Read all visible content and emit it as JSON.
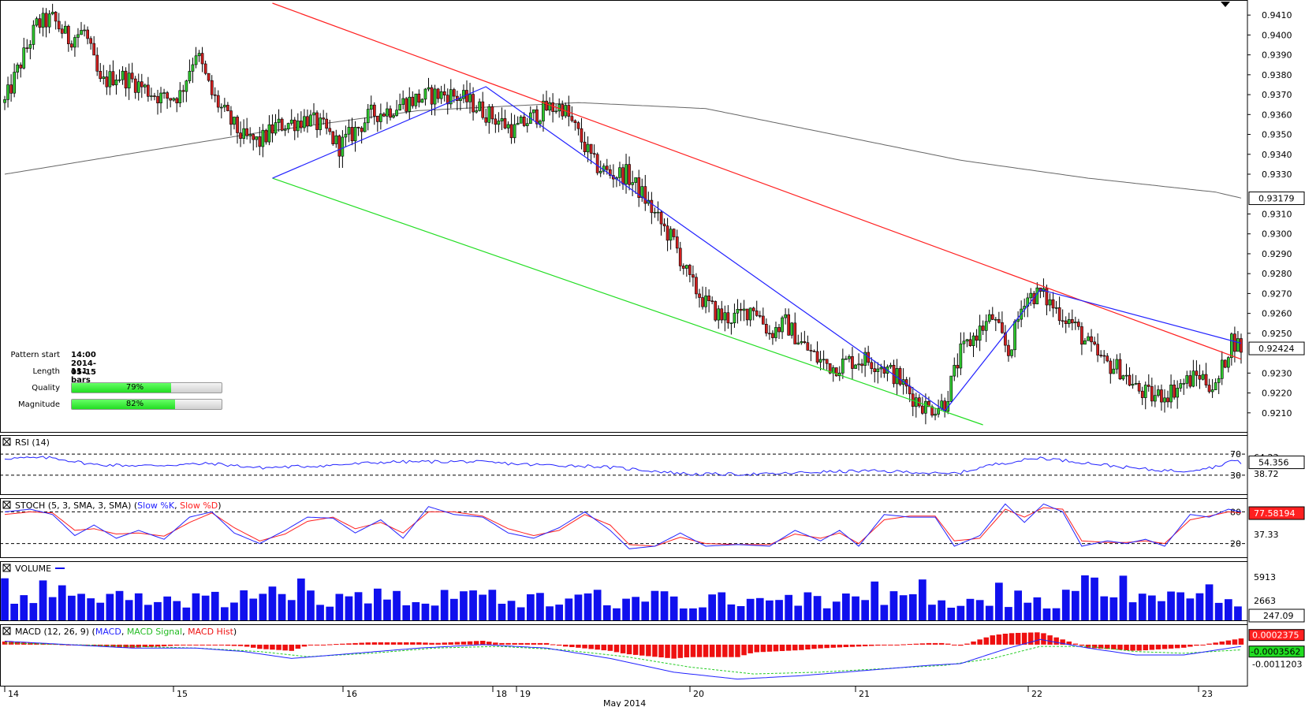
{
  "chart_data": {
    "type": "candlestick",
    "instrument_note": "",
    "price_axis": {
      "range": [
        0.9202,
        0.9416
      ],
      "ticks": [
        "0.9410",
        "0.9400",
        "0.9390",
        "0.9380",
        "0.9370",
        "0.9360",
        "0.9350",
        "0.9340",
        "0.9330",
        "0.9310",
        "0.9300",
        "0.9290",
        "0.9280",
        "0.9270",
        "0.9260",
        "0.9250",
        "0.9230",
        "0.9220",
        "0.9210"
      ],
      "current_price": "0.92424",
      "ma_price": "0.93179"
    },
    "x_axis": {
      "day_labels": [
        "14",
        "15",
        "16",
        "18",
        "19",
        "20",
        "21",
        "22",
        "23"
      ],
      "month_label": "May 2014"
    },
    "ohlc_anchors": [
      [
        0,
        0.9366
      ],
      [
        5,
        0.9386
      ],
      [
        10,
        0.9405
      ],
      [
        15,
        0.9408
      ],
      [
        20,
        0.9398
      ],
      [
        25,
        0.9402
      ],
      [
        30,
        0.9375
      ],
      [
        35,
        0.938
      ],
      [
        40,
        0.9377
      ],
      [
        45,
        0.9372
      ],
      [
        50,
        0.9368
      ],
      [
        55,
        0.937
      ],
      [
        60,
        0.9392
      ],
      [
        65,
        0.937
      ],
      [
        70,
        0.9358
      ],
      [
        75,
        0.9348
      ],
      [
        80,
        0.9346
      ],
      [
        85,
        0.9354
      ],
      [
        90,
        0.9356
      ],
      [
        95,
        0.9358
      ],
      [
        100,
        0.9353
      ],
      [
        105,
        0.9344
      ],
      [
        110,
        0.9352
      ],
      [
        115,
        0.936
      ],
      [
        120,
        0.9362
      ],
      [
        125,
        0.9366
      ],
      [
        130,
        0.9368
      ],
      [
        135,
        0.937
      ],
      [
        140,
        0.937
      ],
      [
        145,
        0.9367
      ],
      [
        150,
        0.9362
      ],
      [
        155,
        0.9357
      ],
      [
        160,
        0.9352
      ],
      [
        165,
        0.9358
      ],
      [
        170,
        0.9363
      ],
      [
        175,
        0.9364
      ],
      [
        180,
        0.935
      ],
      [
        185,
        0.9335
      ],
      [
        190,
        0.933
      ],
      [
        195,
        0.933
      ],
      [
        200,
        0.932
      ],
      [
        205,
        0.9307
      ],
      [
        210,
        0.9296
      ],
      [
        215,
        0.9276
      ],
      [
        220,
        0.9265
      ],
      [
        225,
        0.9258
      ],
      [
        230,
        0.9258
      ],
      [
        235,
        0.9264
      ],
      [
        240,
        0.925
      ],
      [
        245,
        0.9255
      ],
      [
        250,
        0.9245
      ],
      [
        255,
        0.9237
      ],
      [
        260,
        0.9233
      ],
      [
        265,
        0.9236
      ],
      [
        270,
        0.9237
      ],
      [
        275,
        0.9234
      ],
      [
        280,
        0.9228
      ],
      [
        285,
        0.9218
      ],
      [
        290,
        0.9212
      ],
      [
        295,
        0.9215
      ],
      [
        300,
        0.924
      ],
      [
        305,
        0.925
      ],
      [
        310,
        0.9258
      ],
      [
        315,
        0.924
      ],
      [
        320,
        0.9268
      ],
      [
        325,
        0.927
      ],
      [
        330,
        0.9262
      ],
      [
        335,
        0.9255
      ],
      [
        340,
        0.9244
      ],
      [
        345,
        0.9235
      ],
      [
        350,
        0.9232
      ],
      [
        355,
        0.9222
      ],
      [
        360,
        0.9218
      ],
      [
        365,
        0.922
      ],
      [
        370,
        0.9225
      ],
      [
        375,
        0.9229
      ],
      [
        380,
        0.9222
      ],
      [
        385,
        0.9247
      ],
      [
        388,
        0.9243
      ]
    ],
    "ma_anchors": [
      [
        0,
        0.933
      ],
      [
        80,
        0.9351
      ],
      [
        130,
        0.9362
      ],
      [
        180,
        0.9366
      ],
      [
        220,
        0.9363
      ],
      [
        260,
        0.935
      ],
      [
        300,
        0.9337
      ],
      [
        340,
        0.9328
      ],
      [
        380,
        0.9321
      ],
      [
        388,
        0.9318
      ]
    ],
    "pattern_lines": {
      "resistance_red": [
        [
          84,
          0.9416
        ],
        [
          388,
          0.9237
        ]
      ],
      "support_green": [
        [
          84,
          0.9328
        ],
        [
          307,
          0.9204
        ]
      ],
      "zigzag_blue": [
        [
          84,
          0.9328
        ],
        [
          151,
          0.9374
        ],
        [
          295,
          0.9211
        ],
        [
          325,
          0.9272
        ],
        [
          388,
          0.9245
        ]
      ]
    },
    "pattern_info": {
      "start_label": "Pattern start",
      "start_value": "14:00 2014-05-15",
      "length_label": "Length",
      "length_value": "111 bars",
      "quality_label": "Quality",
      "quality_value": "79%",
      "quality_pct": 79,
      "magnitude_label": "Magnitude",
      "magnitude_value": "82%",
      "magnitude_pct": 82
    },
    "rsi": {
      "title": "RSI (14)",
      "levels": [
        "70",
        "30"
      ],
      "ticks": [
        "64.23",
        "38.72"
      ],
      "current": "54.356",
      "anchors": [
        [
          0,
          62
        ],
        [
          15,
          63
        ],
        [
          28,
          50
        ],
        [
          45,
          48
        ],
        [
          65,
          52
        ],
        [
          80,
          44
        ],
        [
          100,
          48
        ],
        [
          120,
          55
        ],
        [
          145,
          56
        ],
        [
          165,
          50
        ],
        [
          185,
          47
        ],
        [
          200,
          40
        ],
        [
          215,
          32
        ],
        [
          240,
          32
        ],
        [
          255,
          36
        ],
        [
          270,
          38
        ],
        [
          285,
          36
        ],
        [
          295,
          32
        ],
        [
          300,
          35
        ],
        [
          310,
          50
        ],
        [
          325,
          63
        ],
        [
          340,
          53
        ],
        [
          350,
          46
        ],
        [
          360,
          40
        ],
        [
          370,
          38
        ],
        [
          380,
          46
        ],
        [
          385,
          58
        ],
        [
          388,
          54
        ]
      ]
    },
    "stoch": {
      "title": "STOCH (5, 3, SMA, 3, SMA)",
      "k_name": "Slow %K",
      "d_name": "Slow %D",
      "levels": [
        "80",
        "20"
      ],
      "ticks": [
        "37.33"
      ],
      "current": "77.58194",
      "k_anchors": [
        [
          0,
          80
        ],
        [
          8,
          85
        ],
        [
          15,
          75
        ],
        [
          22,
          35
        ],
        [
          28,
          55
        ],
        [
          35,
          30
        ],
        [
          42,
          45
        ],
        [
          50,
          28
        ],
        [
          58,
          70
        ],
        [
          65,
          80
        ],
        [
          72,
          40
        ],
        [
          80,
          20
        ],
        [
          88,
          45
        ],
        [
          95,
          70
        ],
        [
          103,
          68
        ],
        [
          110,
          40
        ],
        [
          118,
          65
        ],
        [
          125,
          30
        ],
        [
          133,
          90
        ],
        [
          141,
          75
        ],
        [
          150,
          70
        ],
        [
          158,
          40
        ],
        [
          166,
          30
        ],
        [
          174,
          50
        ],
        [
          182,
          80
        ],
        [
          190,
          45
        ],
        [
          196,
          10
        ],
        [
          204,
          15
        ],
        [
          212,
          40
        ],
        [
          220,
          15
        ],
        [
          230,
          18
        ],
        [
          240,
          15
        ],
        [
          248,
          45
        ],
        [
          256,
          25
        ],
        [
          262,
          45
        ],
        [
          268,
          15
        ],
        [
          276,
          75
        ],
        [
          284,
          70
        ],
        [
          292,
          70
        ],
        [
          298,
          15
        ],
        [
          306,
          35
        ],
        [
          314,
          95
        ],
        [
          320,
          60
        ],
        [
          326,
          95
        ],
        [
          332,
          80
        ],
        [
          338,
          15
        ],
        [
          346,
          25
        ],
        [
          352,
          20
        ],
        [
          358,
          28
        ],
        [
          364,
          15
        ],
        [
          372,
          75
        ],
        [
          378,
          70
        ],
        [
          384,
          85
        ],
        [
          388,
          80
        ]
      ],
      "d_anchors": [
        [
          0,
          75
        ],
        [
          8,
          80
        ],
        [
          15,
          78
        ],
        [
          22,
          45
        ],
        [
          28,
          48
        ],
        [
          35,
          38
        ],
        [
          42,
          40
        ],
        [
          50,
          34
        ],
        [
          58,
          60
        ],
        [
          65,
          78
        ],
        [
          72,
          50
        ],
        [
          80,
          25
        ],
        [
          88,
          38
        ],
        [
          95,
          62
        ],
        [
          103,
          70
        ],
        [
          110,
          48
        ],
        [
          118,
          60
        ],
        [
          125,
          40
        ],
        [
          133,
          80
        ],
        [
          141,
          80
        ],
        [
          150,
          72
        ],
        [
          158,
          48
        ],
        [
          166,
          35
        ],
        [
          174,
          45
        ],
        [
          182,
          75
        ],
        [
          190,
          55
        ],
        [
          196,
          18
        ],
        [
          204,
          15
        ],
        [
          212,
          32
        ],
        [
          220,
          20
        ],
        [
          230,
          18
        ],
        [
          240,
          18
        ],
        [
          248,
          38
        ],
        [
          256,
          30
        ],
        [
          262,
          40
        ],
        [
          268,
          20
        ],
        [
          276,
          65
        ],
        [
          284,
          72
        ],
        [
          292,
          72
        ],
        [
          298,
          25
        ],
        [
          306,
          30
        ],
        [
          314,
          85
        ],
        [
          320,
          70
        ],
        [
          326,
          88
        ],
        [
          332,
          85
        ],
        [
          338,
          25
        ],
        [
          346,
          22
        ],
        [
          352,
          22
        ],
        [
          358,
          25
        ],
        [
          364,
          20
        ],
        [
          372,
          65
        ],
        [
          378,
          72
        ],
        [
          384,
          80
        ],
        [
          388,
          78
        ]
      ]
    },
    "volume": {
      "title": "VOLUME",
      "ticks": [
        "5913",
        "2663"
      ],
      "current": "247.09",
      "max": 7400
    },
    "macd": {
      "title": "MACD (12, 26, 9)",
      "macd_name": "MACD",
      "signal_name": "MACD Signal",
      "hist_name": "MACD Hist",
      "ticks": [
        "0.0002375",
        "-0.0003562",
        "-0.0011203"
      ],
      "range": [
        -0.0022,
        0.001
      ],
      "macd_anchors": [
        [
          0,
          0.0002
        ],
        [
          20,
          0.0
        ],
        [
          40,
          -0.0002
        ],
        [
          60,
          -0.0002
        ],
        [
          75,
          -0.0004
        ],
        [
          90,
          -0.0008
        ],
        [
          110,
          -0.0005
        ],
        [
          130,
          -0.0002
        ],
        [
          150,
          0.0
        ],
        [
          170,
          -0.0002
        ],
        [
          190,
          -0.0008
        ],
        [
          210,
          -0.0016
        ],
        [
          230,
          -0.002
        ],
        [
          250,
          -0.0018
        ],
        [
          270,
          -0.0015
        ],
        [
          290,
          -0.0012
        ],
        [
          300,
          -0.0011
        ],
        [
          315,
          -0.0002
        ],
        [
          325,
          0.0003
        ],
        [
          340,
          -0.0002
        ],
        [
          355,
          -0.0006
        ],
        [
          370,
          -0.0006
        ],
        [
          388,
          -0.0001
        ]
      ],
      "signal_anchors": [
        [
          0,
          0.0001
        ],
        [
          20,
          0.0
        ],
        [
          40,
          -0.0001
        ],
        [
          60,
          -0.0002
        ],
        [
          80,
          -0.0004
        ],
        [
          95,
          -0.0007
        ],
        [
          115,
          -0.0005
        ],
        [
          135,
          -0.0002
        ],
        [
          155,
          -0.0001
        ],
        [
          175,
          -0.0003
        ],
        [
          195,
          -0.0007
        ],
        [
          215,
          -0.0013
        ],
        [
          235,
          -0.0017
        ],
        [
          255,
          -0.0016
        ],
        [
          275,
          -0.0014
        ],
        [
          295,
          -0.0012
        ],
        [
          310,
          -0.0008
        ],
        [
          325,
          -0.0001
        ],
        [
          340,
          -0.0001
        ],
        [
          355,
          -0.0004
        ],
        [
          370,
          -0.0005
        ],
        [
          388,
          -0.0003
        ]
      ]
    }
  }
}
